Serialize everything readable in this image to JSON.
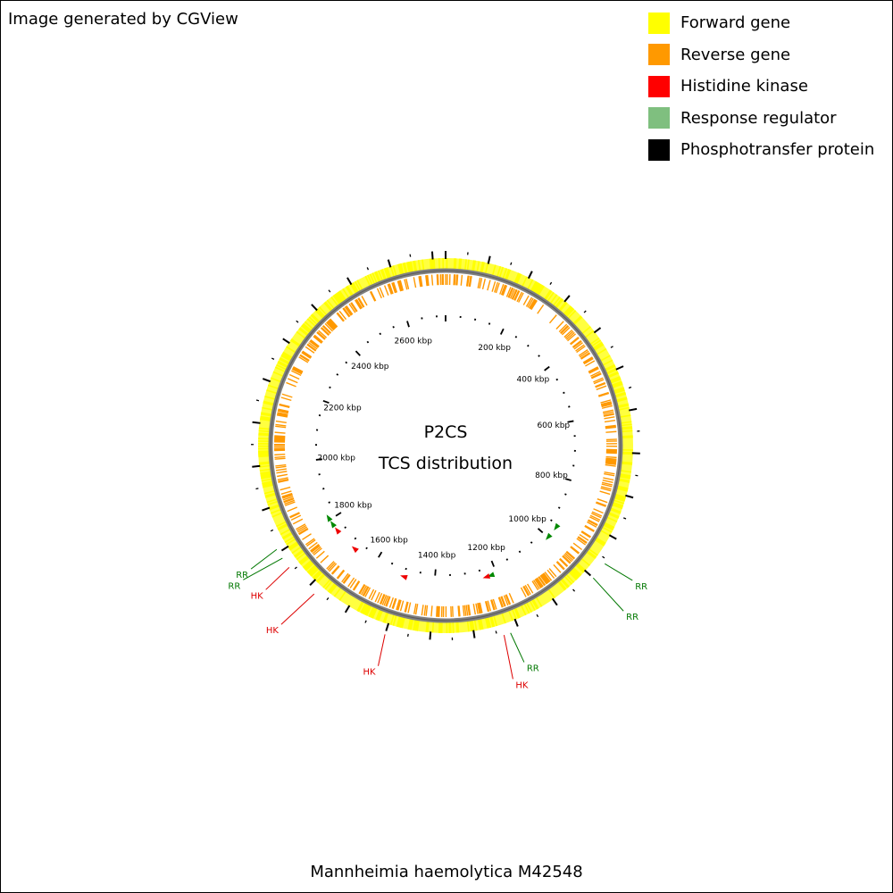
{
  "header": {
    "credit": "Image generated by CGView"
  },
  "legend": [
    {
      "label": "Forward gene",
      "color": "#ffff00"
    },
    {
      "label": "Reverse gene",
      "color": "#ff9900"
    },
    {
      "label": "Histidine kinase",
      "color": "#ff0000"
    },
    {
      "label": "Response regulator",
      "color": "#7fbf7f"
    },
    {
      "label": "Phosphotransfer protein",
      "color": "#000000"
    }
  ],
  "map": {
    "title_line1": "P2CS",
    "title_line2": "TCS distribution",
    "genome_length_kbp": 2730,
    "scale_labels": [
      "200 kbp",
      "400 kbp",
      "600 kbp",
      "800 kbp",
      "1000 kbp",
      "1200 kbp",
      "1400 kbp",
      "1600 kbp",
      "1800 kbp",
      "2000 kbp",
      "2200 kbp",
      "2400 kbp",
      "2600 kbp"
    ],
    "features": [
      {
        "label": "RR",
        "type": "rr",
        "position_kbp": 960
      },
      {
        "label": "RR",
        "type": "rr",
        "position_kbp": 1000
      },
      {
        "label": "RR",
        "type": "rr",
        "position_kbp": 1220
      },
      {
        "label": "HK",
        "type": "hk",
        "position_kbp": 1235
      },
      {
        "label": "HK",
        "type": "hk",
        "position_kbp": 1500
      },
      {
        "label": "HK",
        "type": "hk",
        "position_kbp": 1680
      },
      {
        "label": "HK",
        "type": "hk",
        "position_kbp": 1760
      },
      {
        "label": "RR",
        "type": "rr",
        "position_kbp": 1785
      },
      {
        "label": "RR",
        "type": "rr",
        "position_kbp": 1808
      }
    ],
    "label_colors": {
      "hk": "#dd0000",
      "rr": "#007700",
      "hk_arrow": "#ee0000",
      "rr_arrow": "#008800"
    },
    "track_colors": {
      "forward": "#ffff00",
      "reverse": "#ff9900",
      "backbone": "#808080"
    }
  },
  "organism": "Mannheimia haemolytica M42548"
}
